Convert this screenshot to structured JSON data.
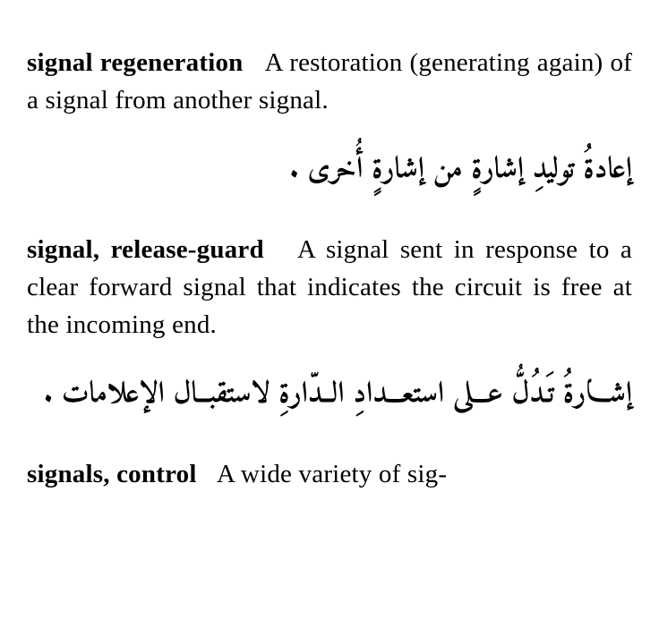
{
  "entries": [
    {
      "term": "signal regeneration",
      "definition": "A restoration (generating again) of a signal from another signal.",
      "arabic": "إعادةُ توليدِ إشارةٍ من إشارةٍ أُخرى .",
      "arabic_single_line": true
    },
    {
      "term": "signal, release-guard",
      "definition": "A signal sent in response to a clear forward signal that indi­cates the circuit is free at the incoming end.",
      "arabic": "إشـــارةُ تَـدُلُّ عـــلى استعـــدادِ الــدّارةِ لاستقبــال الإعلامات .",
      "arabic_single_line": false
    },
    {
      "term": "signals, control",
      "definition": "A wide variety of sig-",
      "arabic": "",
      "arabic_single_line": true
    }
  ]
}
